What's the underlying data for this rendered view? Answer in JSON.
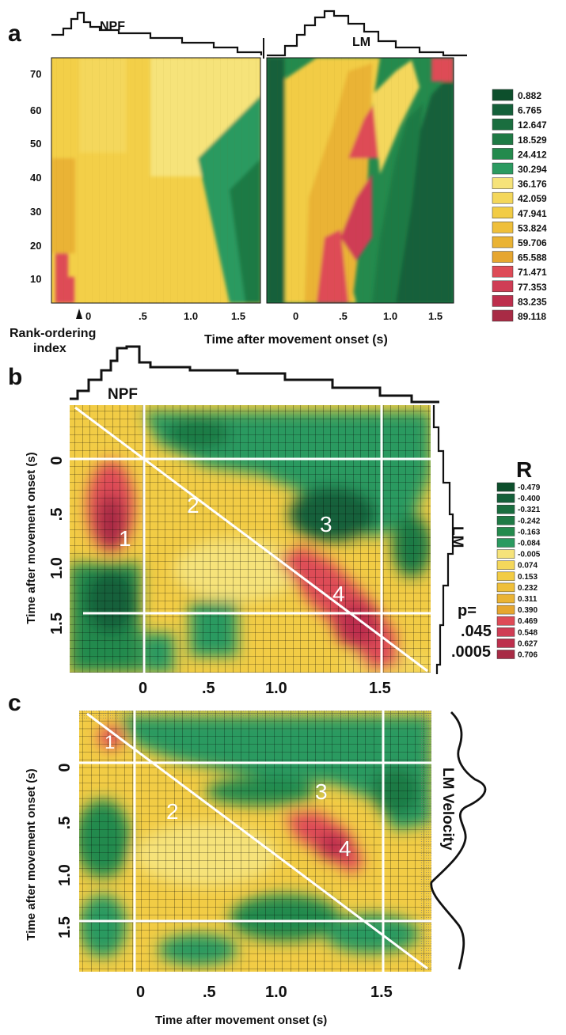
{
  "colors": {
    "scale": [
      "#0d4f2c",
      "#14603a",
      "#1a6e3f",
      "#1f7a45",
      "#248a4d",
      "#2b9a60",
      "#f6e37a",
      "#f4d75b",
      "#f2cc45",
      "#efbf3a",
      "#eab334",
      "#e6a62f",
      "#de4b57",
      "#cf3d55",
      "#bd2f4d",
      "#a82b45"
    ],
    "grid": "#000000",
    "overlay": "#ffffff"
  },
  "panels": {
    "a": {
      "letter": "a",
      "trace_labels": {
        "left": "NPF",
        "right": "LM"
      },
      "y_ticks": [
        "70",
        "60",
        "50",
        "40",
        "30",
        "20",
        "10"
      ],
      "x_ticks_left": [
        "0",
        ".5",
        "1.0",
        "1.5"
      ],
      "x_ticks_right": [
        "0",
        ".5",
        "1.0",
        "1.5"
      ],
      "rank_label_line1": "Rank-ordering",
      "rank_label_line2": "index",
      "xlabel": "Time after movement onset (s)",
      "legend": [
        "0.882",
        "6.765",
        "12.647",
        "18.529",
        "24.412",
        "30.294",
        "36.176",
        "42.059",
        "47.941",
        "53.824",
        "59.706",
        "65.588",
        "71.471",
        "77.353",
        "83.235",
        "89.118"
      ]
    },
    "b": {
      "letter": "b",
      "top_label": "NPF",
      "side_label": "LM",
      "ylabel": "Time after movement onset (s)",
      "y_ticks": [
        "0",
        ".5",
        "1.0",
        "1.5"
      ],
      "x_ticks": [
        "0",
        ".5",
        "1.0",
        "1.5"
      ],
      "regions": [
        "1",
        "2",
        "3",
        "4"
      ],
      "legend_title": "R",
      "legend": [
        "-0.479",
        "-0.400",
        "-0.321",
        "-0.242",
        "-0.163",
        "-0.084",
        "-0.005",
        "0.074",
        "0.153",
        "0.232",
        "0.311",
        "0.390",
        "0.469",
        "0.548",
        "0.627",
        "0.706"
      ],
      "p_label": "p=",
      "p1": ".045",
      "p2": ".0005"
    },
    "c": {
      "letter": "c",
      "side_label": "LM Velocity",
      "ylabel": "Time after movement onset (s)",
      "xlabel": "Time after movement onset (s)",
      "y_ticks": [
        "0",
        ".5",
        "1.0",
        "1.5"
      ],
      "x_ticks": [
        "0",
        ".5",
        "1.0",
        "1.5"
      ],
      "regions": [
        "1",
        "2",
        "3",
        "4"
      ]
    }
  },
  "chart_data": [
    {
      "type": "heatmap",
      "title": "",
      "xlabel": "Time after movement onset (s)",
      "ylabel": "",
      "series": [
        {
          "name": "NPF"
        },
        {
          "name": "LM"
        }
      ],
      "x_ticks": [
        0,
        0.5,
        1.0,
        1.5
      ],
      "y_ticks": [
        10,
        20,
        30,
        40,
        50,
        60,
        70
      ],
      "ylim": [
        0,
        75
      ],
      "color_scale": [
        0.882,
        6.765,
        12.647,
        18.529,
        24.412,
        30.294,
        36.176,
        42.059,
        47.941,
        53.824,
        59.706,
        65.588,
        71.471,
        77.353,
        83.235,
        89.118
      ]
    },
    {
      "type": "heatmap",
      "title": "",
      "xlabel": "",
      "ylabel": "Time after movement onset (s)",
      "x_ticks": [
        0,
        0.5,
        1.0,
        1.5
      ],
      "y_ticks": [
        0,
        0.5,
        1.0,
        1.5
      ],
      "legend_title": "R",
      "color_scale": [
        -0.479,
        -0.4,
        -0.321,
        -0.242,
        -0.163,
        -0.084,
        -0.005,
        0.074,
        0.153,
        0.232,
        0.311,
        0.39,
        0.469,
        0.548,
        0.627,
        0.706
      ],
      "regions": [
        "1",
        "2",
        "3",
        "4"
      ]
    },
    {
      "type": "heatmap",
      "title": "",
      "xlabel": "Time after movement onset (s)",
      "ylabel": "Time after movement onset (s)",
      "x_ticks": [
        0,
        0.5,
        1.0,
        1.5
      ],
      "y_ticks": [
        0,
        0.5,
        1.0,
        1.5
      ],
      "regions": [
        "1",
        "2",
        "3",
        "4"
      ]
    }
  ]
}
